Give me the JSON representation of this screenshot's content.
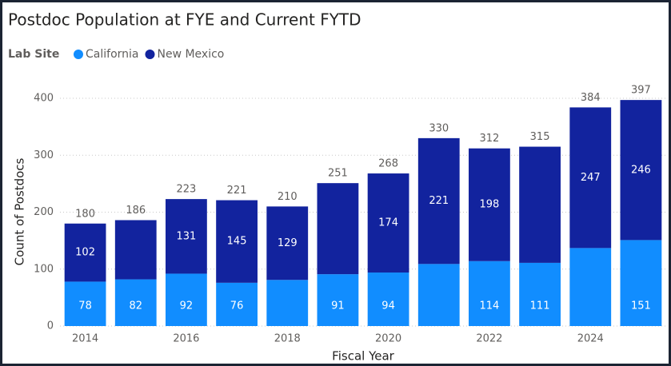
{
  "chart_data": {
    "type": "stacked_bar",
    "title": "Postdoc Population at FYE and Current FYTD",
    "legend_title": "Lab Site",
    "x_label": "Fiscal Year",
    "y_label": "Count of Postdocs",
    "categories": [
      2014,
      null,
      2016,
      null,
      2018,
      null,
      2020,
      null,
      2022,
      null,
      2024,
      null
    ],
    "series": [
      {
        "name": "California",
        "color": "#118dff",
        "values": [
          78,
          82,
          92,
          76,
          81,
          91,
          94,
          109,
          114,
          111,
          137,
          151
        ],
        "value_labels": [
          "78",
          "82",
          "92",
          "76",
          null,
          "91",
          "94",
          null,
          "114",
          "111",
          null,
          "151"
        ]
      },
      {
        "name": "New Mexico",
        "color": "#12239e",
        "values": [
          102,
          104,
          131,
          145,
          129,
          160,
          174,
          221,
          198,
          204,
          247,
          246
        ],
        "value_labels": [
          "102",
          null,
          "131",
          "145",
          "129",
          null,
          "174",
          "221",
          "198",
          null,
          "247",
          "246"
        ]
      }
    ],
    "total_labels": [
      180,
      186,
      223,
      221,
      210,
      251,
      268,
      330,
      312,
      315,
      384,
      397
    ],
    "ylim": [
      0,
      420
    ],
    "yticks": [
      0,
      100,
      200,
      300,
      400
    ],
    "grid": true
  }
}
